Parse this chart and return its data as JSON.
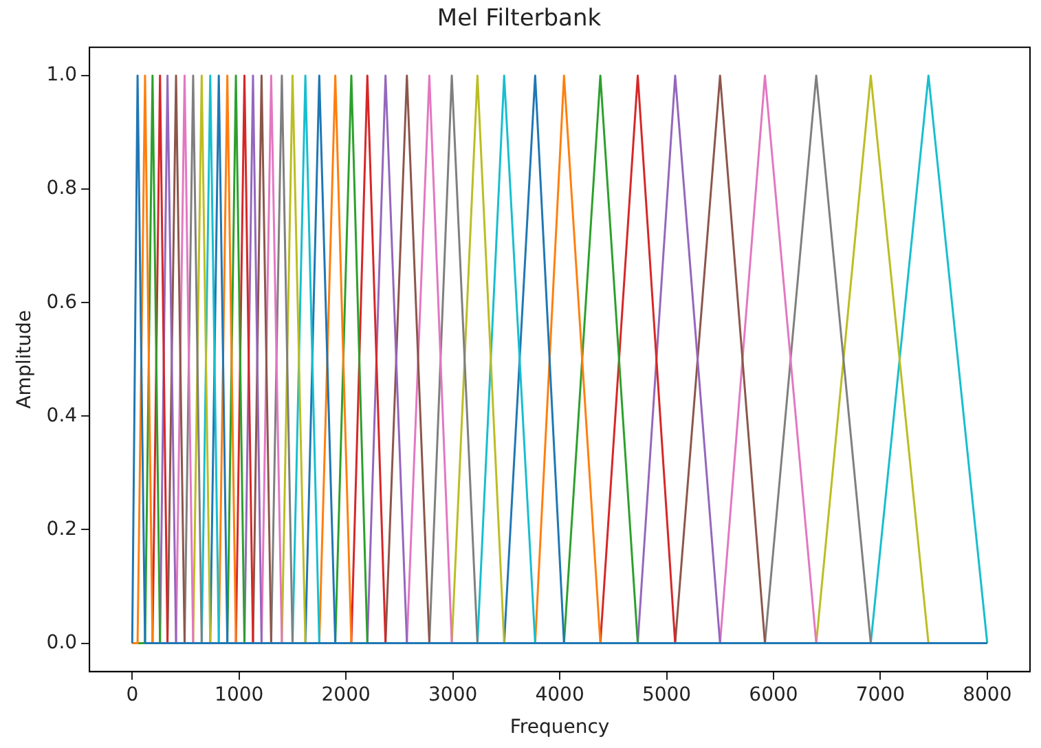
{
  "chart_data": {
    "type": "line",
    "title": "Mel Filterbank",
    "xlabel": "Frequency",
    "ylabel": "Amplitude",
    "xlim": [
      -400,
      8400
    ],
    "xticks": [
      0,
      1000,
      2000,
      3000,
      4000,
      5000,
      6000,
      7000,
      8000
    ],
    "ylim": [
      -0.05,
      1.05
    ],
    "yticks": [
      {
        "value": 0,
        "label": "0.0"
      },
      {
        "value": 0.2,
        "label": "0.2"
      },
      {
        "value": 0.4,
        "label": "0.4"
      },
      {
        "value": 0.6,
        "label": "0.6"
      },
      {
        "value": 0.8,
        "label": "0.8"
      },
      {
        "value": 1,
        "label": "1.0"
      }
    ],
    "grid": false,
    "legend": false,
    "marker": "none",
    "line_style": "solid",
    "series": [
      {
        "color": "#1f77b4",
        "x": [
          0,
          0,
          50,
          120,
          8000
        ],
        "values": [
          0,
          0,
          1,
          0,
          0
        ]
      },
      {
        "color": "#ff7f0e",
        "x": [
          0,
          50,
          120,
          190,
          8000
        ],
        "values": [
          0,
          0,
          1,
          0,
          0
        ]
      },
      {
        "color": "#2ca02c",
        "x": [
          0,
          120,
          190,
          260,
          8000
        ],
        "values": [
          0,
          0,
          1,
          0,
          0
        ]
      },
      {
        "color": "#d62728",
        "x": [
          0,
          190,
          260,
          330,
          8000
        ],
        "values": [
          0,
          0,
          1,
          0,
          0
        ]
      },
      {
        "color": "#9467bd",
        "x": [
          0,
          260,
          330,
          410,
          8000
        ],
        "values": [
          0,
          0,
          1,
          0,
          0
        ]
      },
      {
        "color": "#8c564b",
        "x": [
          0,
          330,
          410,
          490,
          8000
        ],
        "values": [
          0,
          0,
          1,
          0,
          0
        ]
      },
      {
        "color": "#e377c2",
        "x": [
          0,
          410,
          490,
          570,
          8000
        ],
        "values": [
          0,
          0,
          1,
          0,
          0
        ]
      },
      {
        "color": "#7f7f7f",
        "x": [
          0,
          490,
          570,
          650,
          8000
        ],
        "values": [
          0,
          0,
          1,
          0,
          0
        ]
      },
      {
        "color": "#bcbd22",
        "x": [
          0,
          570,
          650,
          730,
          8000
        ],
        "values": [
          0,
          0,
          1,
          0,
          0
        ]
      },
      {
        "color": "#17becf",
        "x": [
          0,
          650,
          730,
          810,
          8000
        ],
        "values": [
          0,
          0,
          1,
          0,
          0
        ]
      },
      {
        "color": "#1f77b4",
        "x": [
          0,
          730,
          810,
          890,
          8000
        ],
        "values": [
          0,
          0,
          1,
          0,
          0
        ]
      },
      {
        "color": "#ff7f0e",
        "x": [
          0,
          810,
          890,
          970,
          8000
        ],
        "values": [
          0,
          0,
          1,
          0,
          0
        ]
      },
      {
        "color": "#2ca02c",
        "x": [
          0,
          890,
          970,
          1050,
          8000
        ],
        "values": [
          0,
          0,
          1,
          0,
          0
        ]
      },
      {
        "color": "#d62728",
        "x": [
          0,
          970,
          1050,
          1130,
          8000
        ],
        "values": [
          0,
          0,
          1,
          0,
          0
        ]
      },
      {
        "color": "#9467bd",
        "x": [
          0,
          1050,
          1130,
          1210,
          8000
        ],
        "values": [
          0,
          0,
          1,
          0,
          0
        ]
      },
      {
        "color": "#8c564b",
        "x": [
          0,
          1130,
          1210,
          1300,
          8000
        ],
        "values": [
          0,
          0,
          1,
          0,
          0
        ]
      },
      {
        "color": "#e377c2",
        "x": [
          0,
          1210,
          1300,
          1400,
          8000
        ],
        "values": [
          0,
          0,
          1,
          0,
          0
        ]
      },
      {
        "color": "#7f7f7f",
        "x": [
          0,
          1300,
          1400,
          1500,
          8000
        ],
        "values": [
          0,
          0,
          1,
          0,
          0
        ]
      },
      {
        "color": "#bcbd22",
        "x": [
          0,
          1400,
          1500,
          1620,
          8000
        ],
        "values": [
          0,
          0,
          1,
          0,
          0
        ]
      },
      {
        "color": "#17becf",
        "x": [
          0,
          1500,
          1620,
          1750,
          8000
        ],
        "values": [
          0,
          0,
          1,
          0,
          0
        ]
      },
      {
        "color": "#1f77b4",
        "x": [
          0,
          1620,
          1750,
          1900,
          8000
        ],
        "values": [
          0,
          0,
          1,
          0,
          0
        ]
      },
      {
        "color": "#ff7f0e",
        "x": [
          0,
          1750,
          1900,
          2050,
          8000
        ],
        "values": [
          0,
          0,
          1,
          0,
          0
        ]
      },
      {
        "color": "#2ca02c",
        "x": [
          0,
          1900,
          2050,
          2200,
          8000
        ],
        "values": [
          0,
          0,
          1,
          0,
          0
        ]
      },
      {
        "color": "#d62728",
        "x": [
          0,
          2050,
          2200,
          2370,
          8000
        ],
        "values": [
          0,
          0,
          1,
          0,
          0
        ]
      },
      {
        "color": "#9467bd",
        "x": [
          0,
          2200,
          2370,
          2570,
          8000
        ],
        "values": [
          0,
          0,
          1,
          0,
          0
        ]
      },
      {
        "color": "#8c564b",
        "x": [
          0,
          2370,
          2570,
          2780,
          8000
        ],
        "values": [
          0,
          0,
          1,
          0,
          0
        ]
      },
      {
        "color": "#e377c2",
        "x": [
          0,
          2570,
          2780,
          2990,
          8000
        ],
        "values": [
          0,
          0,
          1,
          0,
          0
        ]
      },
      {
        "color": "#7f7f7f",
        "x": [
          0,
          2780,
          2990,
          3230,
          8000
        ],
        "values": [
          0,
          0,
          1,
          0,
          0
        ]
      },
      {
        "color": "#bcbd22",
        "x": [
          0,
          2990,
          3230,
          3480,
          8000
        ],
        "values": [
          0,
          0,
          1,
          0,
          0
        ]
      },
      {
        "color": "#17becf",
        "x": [
          0,
          3230,
          3480,
          3770,
          8000
        ],
        "values": [
          0,
          0,
          1,
          0,
          0
        ]
      },
      {
        "color": "#1f77b4",
        "x": [
          0,
          3480,
          3770,
          4040,
          8000
        ],
        "values": [
          0,
          0,
          1,
          0,
          0
        ]
      },
      {
        "color": "#ff7f0e",
        "x": [
          0,
          3770,
          4040,
          4380,
          8000
        ],
        "values": [
          0,
          0,
          1,
          0,
          0
        ]
      },
      {
        "color": "#2ca02c",
        "x": [
          0,
          4040,
          4380,
          4730,
          8000
        ],
        "values": [
          0,
          0,
          1,
          0,
          0
        ]
      },
      {
        "color": "#d62728",
        "x": [
          0,
          4380,
          4730,
          5080,
          8000
        ],
        "values": [
          0,
          0,
          1,
          0,
          0
        ]
      },
      {
        "color": "#9467bd",
        "x": [
          0,
          4730,
          5080,
          5500,
          8000
        ],
        "values": [
          0,
          0,
          1,
          0,
          0
        ]
      },
      {
        "color": "#8c564b",
        "x": [
          0,
          5080,
          5500,
          5920,
          8000
        ],
        "values": [
          0,
          0,
          1,
          0,
          0
        ]
      },
      {
        "color": "#e377c2",
        "x": [
          0,
          5500,
          5920,
          6400,
          8000
        ],
        "values": [
          0,
          0,
          1,
          0,
          0
        ]
      },
      {
        "color": "#7f7f7f",
        "x": [
          0,
          5920,
          6400,
          6910,
          8000
        ],
        "values": [
          0,
          0,
          1,
          0,
          0
        ]
      },
      {
        "color": "#bcbd22",
        "x": [
          0,
          6400,
          6910,
          7450,
          8000
        ],
        "values": [
          0,
          0,
          1,
          0,
          0
        ]
      },
      {
        "color": "#17becf",
        "x": [
          0,
          6910,
          7450,
          8000,
          8000
        ],
        "values": [
          0,
          0,
          1,
          0,
          0
        ]
      }
    ]
  }
}
